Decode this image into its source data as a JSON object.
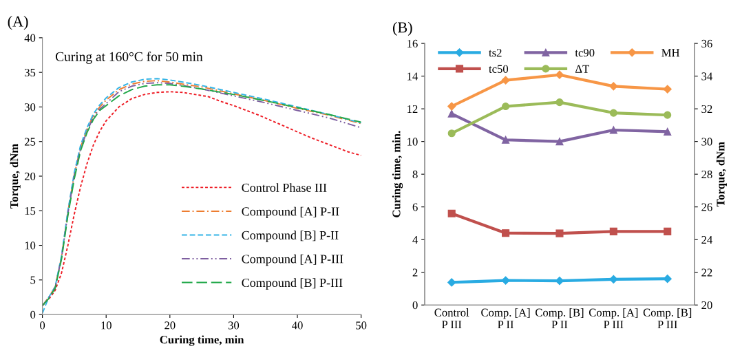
{
  "chart_data": [
    {
      "type": "line",
      "title": "(A)",
      "xlabel": "Curing time, min",
      "ylabel": "Torque, dNm",
      "annotations": [
        "Curing at 160°C for 50 min"
      ],
      "xlim": [
        0,
        50
      ],
      "ylim": [
        0,
        40
      ],
      "xticks": [
        0,
        10,
        20,
        30,
        40,
        50
      ],
      "yticks": [
        0,
        5,
        10,
        15,
        20,
        25,
        30,
        35,
        40
      ],
      "grid": false,
      "legend": "bottom right",
      "marker": "none",
      "series": [
        {
          "name": "Control Phase III",
          "color": "#ee1c25",
          "line_style": "dotted",
          "x": [
            0,
            1,
            2,
            3,
            4,
            5,
            6,
            7,
            8,
            9,
            10,
            12,
            14,
            16,
            18,
            20,
            22,
            24,
            26,
            28,
            30,
            32,
            34,
            36,
            38,
            40,
            42,
            44,
            46,
            48,
            50
          ],
          "values": [
            1.3,
            2.2,
            3.5,
            6,
            10,
            14.5,
            18.5,
            21.8,
            24.5,
            26.5,
            28,
            30,
            31.2,
            31.8,
            32.1,
            32.2,
            32.1,
            31.8,
            31.5,
            30.8,
            30.2,
            29.5,
            28.8,
            28.0,
            27.2,
            26.4,
            25.6,
            24.9,
            24.2,
            23.5,
            23.0
          ]
        },
        {
          "name": "Compound [A] P-II",
          "color": "#ed7d31",
          "line_style": "dashdot",
          "x": [
            0,
            1,
            2,
            3,
            4,
            5,
            6,
            7,
            8,
            9,
            10,
            12,
            14,
            16,
            18,
            20,
            22,
            25,
            30,
            35,
            40,
            45,
            50
          ],
          "values": [
            1.3,
            2.5,
            4,
            8.3,
            14.8,
            20.2,
            24.2,
            26.8,
            28.8,
            30,
            31,
            32.5,
            33.3,
            33.7,
            33.8,
            33.6,
            33.3,
            32.9,
            31.9,
            30.9,
            29.8,
            28.8,
            27.6
          ]
        },
        {
          "name": "Compound [B] P-II",
          "color": "#33b4e6",
          "line_style": "dashed",
          "x": [
            0,
            1,
            2,
            3,
            4,
            5,
            6,
            7,
            8,
            9,
            10,
            12,
            14,
            16,
            18,
            20,
            22,
            25,
            30,
            35,
            40,
            45,
            50
          ],
          "values": [
            0.2,
            2.5,
            4,
            8.5,
            15,
            20.5,
            24.5,
            27,
            29,
            30.3,
            31.3,
            32.8,
            33.6,
            34.0,
            34.1,
            33.9,
            33.6,
            33.1,
            32.1,
            31.1,
            30.0,
            28.9,
            27.7
          ]
        },
        {
          "name": "Compound [A] P-III",
          "color": "#7e5fa0",
          "line_style": "dashdotdot",
          "x": [
            0,
            1,
            2,
            3,
            4,
            5,
            6,
            7,
            8,
            9,
            10,
            12,
            14,
            16,
            18,
            20,
            22,
            25,
            30,
            35,
            40,
            45,
            50
          ],
          "values": [
            1.3,
            2.4,
            3.9,
            8.2,
            14.6,
            20,
            24,
            26.5,
            28.5,
            29.7,
            30.5,
            32.2,
            33,
            33.4,
            33.5,
            33.4,
            33.1,
            32.6,
            31.6,
            30.6,
            29.5,
            28.4,
            27.0
          ]
        },
        {
          "name": "Compound [B] P-III",
          "color": "#22a84a",
          "line_style": "longdash",
          "x": [
            0,
            1,
            2,
            3,
            4,
            5,
            6,
            7,
            8,
            9,
            10,
            12,
            14,
            16,
            18,
            20,
            22,
            25,
            30,
            35,
            40,
            45,
            50
          ],
          "values": [
            1.3,
            2.3,
            3.8,
            8,
            14.3,
            19.6,
            23.7,
            26.3,
            28.2,
            29.5,
            30.2,
            31.6,
            32.5,
            33.0,
            33.2,
            33.2,
            33.0,
            32.6,
            31.8,
            30.9,
            29.9,
            28.9,
            27.8
          ]
        }
      ]
    },
    {
      "type": "line",
      "title": "(B)",
      "ylabel": "Curing time, min.",
      "y2label": "Torque, dNm",
      "categories": [
        "Control\nP III",
        "Comp. [A]\nP II",
        "Comp. [B]\nP II",
        "Comp. [A]\nP III",
        "Comp. [B]\nP III"
      ],
      "ylim": [
        0,
        16
      ],
      "yticks": [
        0,
        2,
        4,
        6,
        8,
        10,
        12,
        14,
        16
      ],
      "y2lim": [
        20,
        36
      ],
      "y2ticks": [
        20,
        22,
        24,
        26,
        28,
        30,
        32,
        34,
        36
      ],
      "grid": false,
      "legend": "top",
      "line_style": "solid",
      "series": [
        {
          "name": "ts2",
          "color": "#29abe2",
          "marker": "diamond",
          "values": [
            1.38,
            1.5,
            1.48,
            1.57,
            1.6
          ]
        },
        {
          "name": "tc50",
          "color": "#c0504d",
          "marker": "square",
          "values": [
            5.6,
            4.4,
            4.38,
            4.5,
            4.5
          ]
        },
        {
          "name": "tc90",
          "color": "#8064a2",
          "marker": "triangle",
          "values": [
            11.7,
            10.1,
            10.0,
            10.7,
            10.6
          ]
        },
        {
          "name": "ΔT",
          "color": "#9bbb59",
          "marker": "circle",
          "axis": "y2",
          "values": [
            30.5,
            32.15,
            32.4,
            31.75,
            31.62
          ]
        },
        {
          "name": "MH",
          "color": "#f79646",
          "marker": "diamond",
          "axis": "y2",
          "values": [
            32.15,
            33.75,
            34.08,
            33.38,
            33.2
          ]
        }
      ]
    }
  ]
}
